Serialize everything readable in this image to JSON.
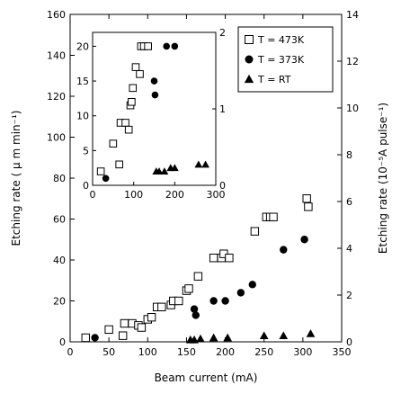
{
  "chart_data": [
    {
      "type": "scatter",
      "role": "main",
      "xlabel": "Beam current (mA)",
      "ylabel": "Etching rate ( μ m min⁻¹)",
      "y2label": "Etching rate (10⁻⁵A pulse⁻¹)",
      "xlim": [
        0,
        350
      ],
      "ylim": [
        0,
        160
      ],
      "y2lim": [
        0,
        14
      ],
      "xticks": [
        "0",
        "50",
        "100",
        "150",
        "200",
        "250",
        "300",
        "350"
      ],
      "yticks": [
        "0",
        "20",
        "40",
        "60",
        "80",
        "100",
        "120",
        "140",
        "160"
      ],
      "y2ticks": [
        "0",
        "2",
        "4",
        "6",
        "8",
        "10",
        "12",
        "14"
      ],
      "legend_position": "top-right",
      "series": [
        {
          "name": "T  = 473K",
          "marker": "open-square",
          "points": [
            [
              20,
              2
            ],
            [
              50,
              6
            ],
            [
              68,
              3
            ],
            [
              70,
              9
            ],
            [
              80,
              9
            ],
            [
              88,
              8
            ],
            [
              92,
              7
            ],
            [
              100,
              11
            ],
            [
              105,
              12
            ],
            [
              112,
              17
            ],
            [
              118,
              17
            ],
            [
              130,
              18
            ],
            [
              133,
              20
            ],
            [
              140,
              20
            ],
            [
              150,
              25
            ],
            [
              153,
              26
            ],
            [
              165,
              32
            ],
            [
              185,
              41
            ],
            [
              195,
              41
            ],
            [
              198,
              43
            ],
            [
              205,
              41
            ],
            [
              238,
              54
            ],
            [
              253,
              61
            ],
            [
              258,
              61
            ],
            [
              262,
              61
            ],
            [
              305,
              70
            ],
            [
              307,
              66
            ]
          ]
        },
        {
          "name": "T  = 373K",
          "marker": "filled-circle",
          "points": [
            [
              32,
              2
            ],
            [
              160,
              16
            ],
            [
              162,
              13
            ],
            [
              185,
              20
            ],
            [
              200,
              20
            ],
            [
              220,
              24
            ],
            [
              235,
              28
            ],
            [
              275,
              45
            ],
            [
              302,
              50
            ]
          ]
        },
        {
          "name": "T  = RT",
          "marker": "filled-triangle",
          "points": [
            [
              155,
              1
            ],
            [
              160,
              1
            ],
            [
              168,
              1.5
            ],
            [
              185,
              2
            ],
            [
              203,
              2
            ],
            [
              250,
              3
            ],
            [
              275,
              3
            ],
            [
              310,
              4
            ]
          ]
        }
      ]
    },
    {
      "type": "scatter",
      "role": "inset",
      "xlim": [
        0,
        300
      ],
      "ylim": [
        0,
        22
      ],
      "y2lim": [
        0,
        2
      ],
      "xticks": [
        "0",
        "100",
        "200",
        "300"
      ],
      "yticks": [
        "0",
        "5",
        "10",
        "15",
        "20"
      ],
      "y2ticks": [
        "0",
        "1",
        "2"
      ],
      "series": [
        {
          "name": "T  = 473K",
          "marker": "open-square",
          "points": [
            [
              20,
              2
            ],
            [
              50,
              6
            ],
            [
              65,
              3
            ],
            [
              68,
              9
            ],
            [
              80,
              9
            ],
            [
              88,
              8
            ],
            [
              92,
              11.5
            ],
            [
              95,
              12
            ],
            [
              98,
              14
            ],
            [
              105,
              17
            ],
            [
              115,
              16
            ],
            [
              118,
              20
            ],
            [
              125,
              20
            ],
            [
              135,
              20
            ]
          ]
        },
        {
          "name": "T  = 373K",
          "marker": "filled-circle",
          "points": [
            [
              32,
              1
            ],
            [
              150,
              15
            ],
            [
              152,
              13
            ],
            [
              180,
              20
            ],
            [
              200,
              20
            ]
          ]
        },
        {
          "name": "T  = RT",
          "marker": "filled-triangle",
          "points": [
            [
              155,
              2
            ],
            [
              162,
              2
            ],
            [
              175,
              2
            ],
            [
              190,
              2.5
            ],
            [
              200,
              2.5
            ],
            [
              258,
              3
            ],
            [
              275,
              3
            ]
          ]
        }
      ]
    }
  ]
}
